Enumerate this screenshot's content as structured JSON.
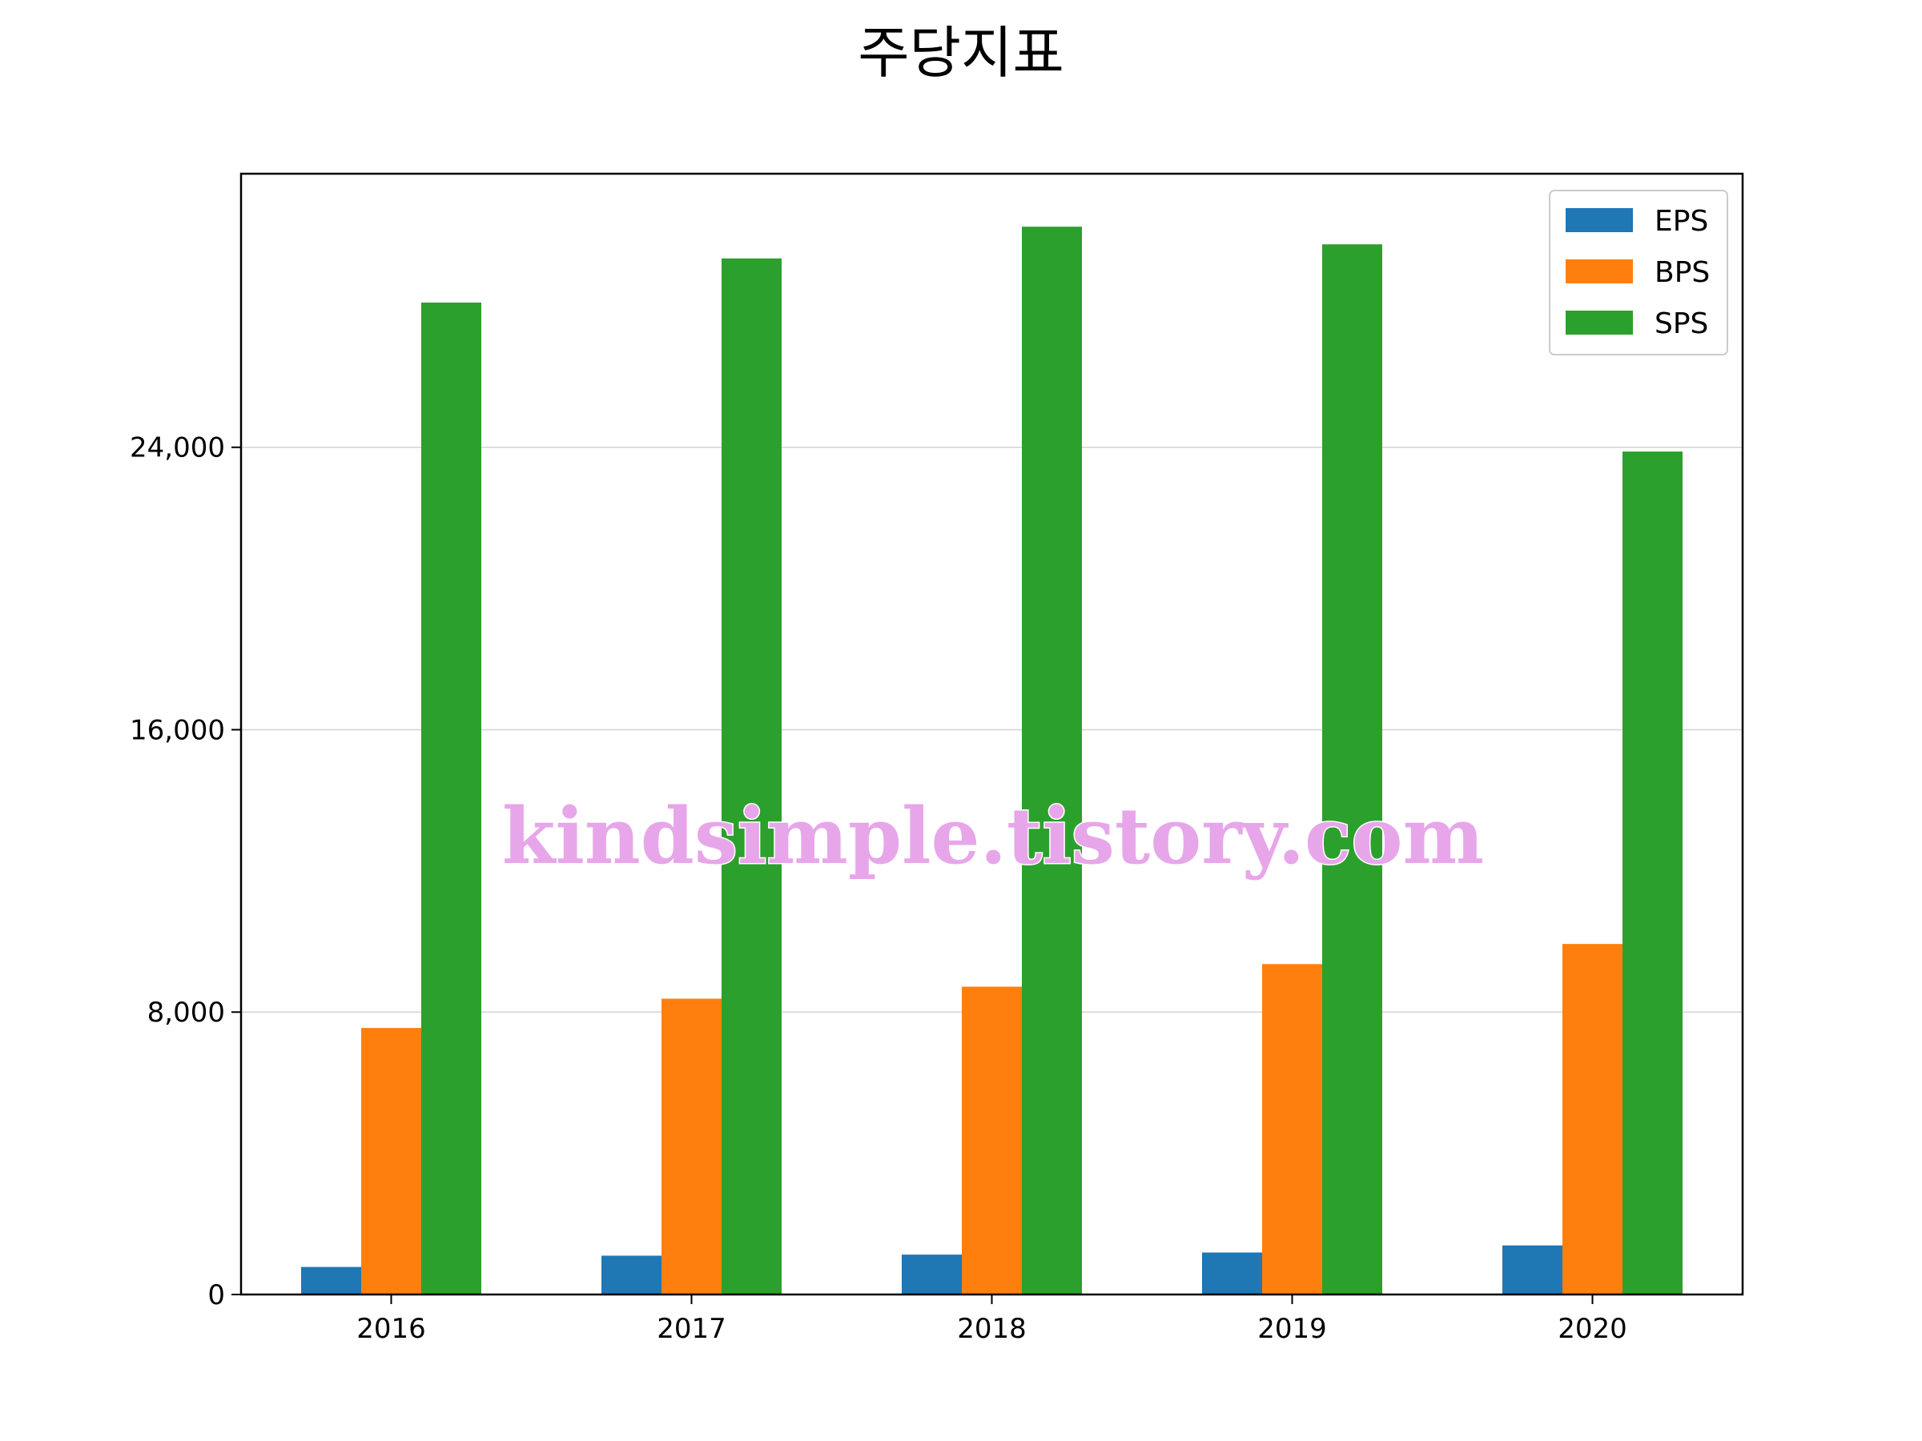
{
  "chart_data": {
    "type": "bar",
    "title": "주당지표",
    "xlabel": "",
    "ylabel": "",
    "categories": [
      "2016",
      "2017",
      "2018",
      "2019",
      "2020"
    ],
    "series": [
      {
        "name": "EPS",
        "color": "#1f77b4",
        "values": [
          780,
          1100,
          1130,
          1190,
          1390
        ]
      },
      {
        "name": "BPS",
        "color": "#ff7f0e",
        "values": [
          7550,
          8380,
          8720,
          9360,
          9930
        ]
      },
      {
        "name": "SPS",
        "color": "#2ca02c",
        "values": [
          28100,
          29350,
          30250,
          29750,
          23880
        ]
      }
    ],
    "ylim": [
      0,
      31750
    ],
    "yticks": [
      0,
      8000,
      16000,
      24000
    ],
    "ytick_labels": [
      "0",
      "8,000",
      "16,000",
      "24,000"
    ],
    "grid": "y",
    "legend_position": "top-right"
  },
  "watermark": "kindsimple.tistory.com"
}
